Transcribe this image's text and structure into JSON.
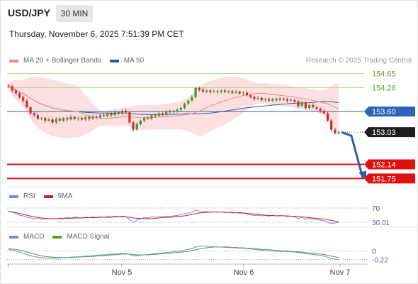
{
  "header": {
    "symbol": "USD/JPY",
    "timeframe": "30 MIN",
    "datetime": "Thursday, November 6, 2025 7:51:39 PM CET",
    "credit": "Research © 2025 Trading Central"
  },
  "chart_data": [
    {
      "type": "candlestick",
      "panel": "price",
      "title": "",
      "legend": [
        {
          "name": "MA 20 + Bollinger Bands",
          "color": "#f08a8a"
        },
        {
          "name": "MA 50",
          "color": "#2d5b9a"
        }
      ],
      "x_ticks": [
        "Nov 5",
        "Nov 6",
        "Nov 7"
      ],
      "ylim": [
        151.62,
        154.76
      ],
      "closes": [
        154.3,
        154.18,
        154.1,
        154.0,
        153.9,
        153.72,
        153.55,
        153.5,
        153.4,
        153.42,
        153.35,
        153.38,
        153.3,
        153.4,
        153.35,
        153.42,
        153.38,
        153.45,
        153.4,
        153.42,
        153.38,
        153.45,
        153.4,
        153.46,
        153.44,
        153.5,
        153.48,
        153.55,
        153.5,
        153.58,
        153.55,
        153.62,
        153.58,
        153.3,
        153.1,
        153.25,
        153.35,
        153.42,
        153.4,
        153.5,
        153.48,
        153.55,
        153.52,
        153.6,
        153.58,
        153.62,
        153.65,
        153.7,
        153.82,
        153.9,
        154.0,
        154.25,
        154.2,
        154.15,
        154.18,
        154.14,
        154.16,
        154.15,
        154.18,
        154.14,
        154.16,
        154.12,
        154.15,
        154.1,
        154.12,
        154.05,
        154.0,
        153.95,
        153.98,
        153.92,
        153.94,
        153.9,
        153.95,
        153.92,
        153.96,
        153.94,
        153.9,
        153.92,
        153.88,
        153.75,
        153.85,
        153.7,
        153.78,
        153.72,
        153.68,
        153.62,
        153.55,
        153.35,
        153.1,
        153.0,
        153.03
      ],
      "levels": [
        {
          "value": 154.65,
          "label": "154.65",
          "color": "#b5d68f",
          "kind": "resistance"
        },
        {
          "value": 154.26,
          "label": "154.26",
          "color": "#b5d68f",
          "kind": "resistance"
        },
        {
          "value": 153.6,
          "label": "153.60",
          "color": "#2b64b8",
          "kind": "pivot"
        },
        {
          "value": 153.03,
          "label": "153.03",
          "color": "#222222",
          "kind": "last"
        },
        {
          "value": 152.14,
          "label": "152.14",
          "color": "#e01010",
          "kind": "support"
        },
        {
          "value": 151.75,
          "label": "151.75",
          "color": "#e01010",
          "kind": "support"
        }
      ]
    },
    {
      "type": "line",
      "panel": "rsi",
      "legend": [
        {
          "name": "RSI",
          "color": "#6e8fd6"
        },
        {
          "name": "9MA",
          "color": "#d22020"
        }
      ],
      "ylim": [
        20,
        80
      ],
      "levels": [
        {
          "value": 70,
          "label": "70"
        },
        {
          "value": 30.01,
          "label": "30.01"
        }
      ],
      "series": [
        {
          "name": "RSI",
          "values": [
            62,
            58,
            55,
            50,
            48,
            44,
            42,
            40,
            41,
            38,
            40,
            39,
            41,
            40,
            42,
            41,
            43,
            42,
            44,
            43,
            42,
            44,
            43,
            45,
            44,
            45,
            44,
            46,
            45,
            47,
            46,
            47,
            46,
            38,
            30,
            36,
            40,
            43,
            42,
            45,
            44,
            46,
            45,
            47,
            46,
            48,
            49,
            51,
            54,
            56,
            58,
            64,
            61,
            59,
            60,
            58,
            59,
            58,
            59,
            57,
            58,
            56,
            57,
            55,
            56,
            53,
            51,
            49,
            50,
            48,
            49,
            47,
            49,
            48,
            49,
            48,
            46,
            47,
            45,
            40,
            44,
            38,
            41,
            39,
            38,
            36,
            34,
            30,
            26,
            28,
            30
          ]
        },
        {
          "name": "9MA",
          "values": [
            60,
            59,
            57,
            55,
            52,
            50,
            47,
            45,
            44,
            42,
            41,
            40,
            40,
            40,
            40,
            40,
            41,
            41,
            42,
            42,
            42,
            43,
            43,
            43,
            43,
            44,
            44,
            44,
            44,
            45,
            45,
            45,
            45,
            44,
            42,
            41,
            41,
            40,
            40,
            40,
            41,
            42,
            43,
            44,
            44,
            45,
            46,
            47,
            48,
            50,
            52,
            54,
            56,
            57,
            58,
            58,
            59,
            59,
            59,
            58,
            58,
            58,
            57,
            57,
            56,
            55,
            54,
            53,
            52,
            51,
            50,
            49,
            49,
            48,
            48,
            48,
            48,
            47,
            47,
            46,
            45,
            44,
            43,
            42,
            41,
            40,
            39,
            37,
            35,
            33,
            32
          ]
        }
      ]
    },
    {
      "type": "line",
      "panel": "macd",
      "legend": [
        {
          "name": "MACD",
          "color": "#6e8fd6"
        },
        {
          "name": "MACD Signal",
          "color": "#5aa02c"
        }
      ],
      "ylim": [
        -0.3,
        0.28
      ],
      "levels": [
        {
          "value": 0,
          "label": "0"
        },
        {
          "value": -0.22,
          "label": "-0.22"
        }
      ],
      "series": [
        {
          "name": "MACD",
          "values": [
            0.04,
            0.02,
            0.0,
            -0.03,
            -0.06,
            -0.09,
            -0.12,
            -0.14,
            -0.16,
            -0.17,
            -0.18,
            -0.18,
            -0.19,
            -0.18,
            -0.18,
            -0.17,
            -0.17,
            -0.16,
            -0.15,
            -0.15,
            -0.14,
            -0.13,
            -0.13,
            -0.12,
            -0.11,
            -0.1,
            -0.1,
            -0.09,
            -0.08,
            -0.08,
            -0.07,
            -0.06,
            -0.06,
            -0.09,
            -0.12,
            -0.12,
            -0.11,
            -0.1,
            -0.09,
            -0.08,
            -0.07,
            -0.06,
            -0.05,
            -0.04,
            -0.03,
            -0.02,
            -0.01,
            0.0,
            0.02,
            0.04,
            0.06,
            0.1,
            0.12,
            0.12,
            0.12,
            0.11,
            0.11,
            0.1,
            0.1,
            0.09,
            0.09,
            0.08,
            0.08,
            0.07,
            0.07,
            0.06,
            0.05,
            0.04,
            0.03,
            0.02,
            0.01,
            0.0,
            0.0,
            -0.01,
            -0.01,
            -0.01,
            -0.02,
            -0.02,
            -0.03,
            -0.04,
            -0.05,
            -0.07,
            -0.08,
            -0.09,
            -0.1,
            -0.11,
            -0.13,
            -0.16,
            -0.19,
            -0.21,
            -0.22
          ]
        },
        {
          "name": "MACD Signal",
          "values": [
            0.06,
            0.05,
            0.04,
            0.02,
            0.0,
            -0.03,
            -0.05,
            -0.08,
            -0.1,
            -0.12,
            -0.14,
            -0.15,
            -0.16,
            -0.17,
            -0.17,
            -0.17,
            -0.17,
            -0.17,
            -0.16,
            -0.16,
            -0.15,
            -0.15,
            -0.14,
            -0.14,
            -0.13,
            -0.12,
            -0.12,
            -0.11,
            -0.1,
            -0.1,
            -0.09,
            -0.08,
            -0.08,
            -0.08,
            -0.09,
            -0.1,
            -0.1,
            -0.1,
            -0.1,
            -0.09,
            -0.09,
            -0.08,
            -0.07,
            -0.06,
            -0.06,
            -0.05,
            -0.04,
            -0.03,
            -0.02,
            -0.01,
            0.01,
            0.03,
            0.05,
            0.07,
            0.08,
            0.09,
            0.1,
            0.1,
            0.1,
            0.1,
            0.1,
            0.09,
            0.09,
            0.08,
            0.08,
            0.07,
            0.07,
            0.06,
            0.05,
            0.04,
            0.04,
            0.03,
            0.02,
            0.01,
            0.01,
            0.0,
            0.0,
            -0.01,
            -0.02,
            -0.02,
            -0.03,
            -0.04,
            -0.05,
            -0.06,
            -0.07,
            -0.08,
            -0.09,
            -0.11,
            -0.13,
            -0.15,
            -0.17
          ]
        }
      ]
    }
  ]
}
